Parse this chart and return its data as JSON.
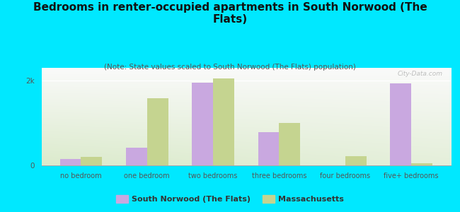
{
  "title": "Bedrooms in renter-occupied apartments in South Norwood (The\nFlats)",
  "subtitle": "(Note: State values scaled to South Norwood (The Flats) population)",
  "categories": [
    "no bedroom",
    "one bedroom",
    "two bedrooms",
    "three bedrooms",
    "four bedrooms",
    "five+ bedrooms"
  ],
  "south_norwood": [
    150,
    420,
    1950,
    780,
    0,
    1930
  ],
  "massachusetts": [
    200,
    1580,
    2050,
    1000,
    220,
    50
  ],
  "bar_color_sn": "#c9a8e0",
  "bar_color_ma": "#c5d490",
  "bg_outer": "#00e8ff",
  "ylim": [
    0,
    2300
  ],
  "yticks": [
    0,
    2000
  ],
  "ytick_labels": [
    "0",
    "2k"
  ],
  "legend_sn": "South Norwood (The Flats)",
  "legend_ma": "Massachusetts",
  "title_fontsize": 11,
  "subtitle_fontsize": 7.5,
  "watermark": "City-Data.com",
  "title_color": "#111111",
  "subtitle_color": "#555555",
  "tick_color": "#555555"
}
